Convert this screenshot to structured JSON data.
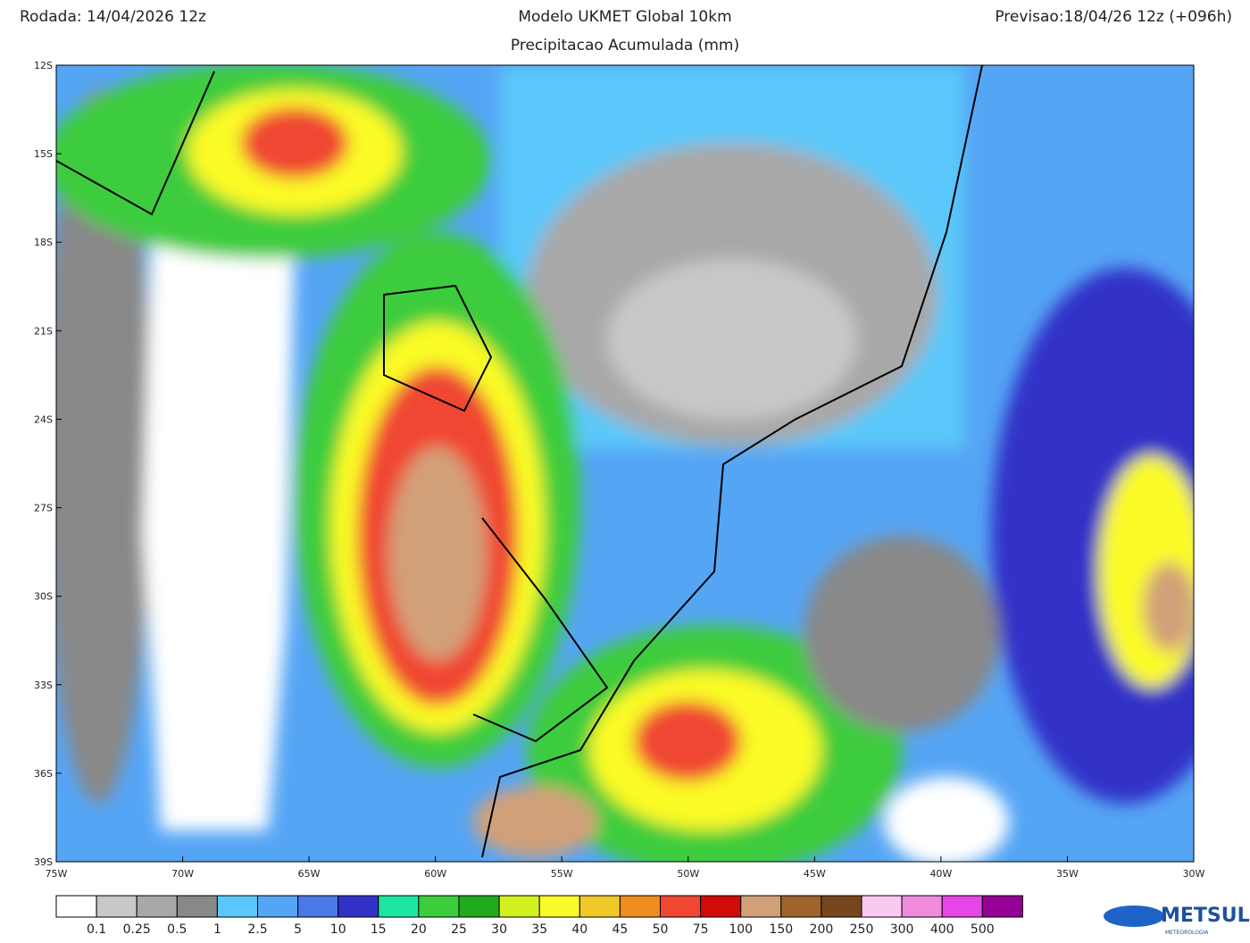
{
  "header": {
    "run": "Rodada: 14/04/2026 12z",
    "title": "Modelo UKMET Global 10km",
    "subtitle": "Precipitacao Acumulada (mm)",
    "forecast": "Previsao:18/04/26 12z (+096h)"
  },
  "map": {
    "lat_labels": [
      "12S",
      "15S",
      "18S",
      "21S",
      "24S",
      "27S",
      "30S",
      "33S",
      "36S",
      "39S"
    ],
    "lon_labels": [
      "75W",
      "70W",
      "65W",
      "60W",
      "55W",
      "50W",
      "45W",
      "40W",
      "35W",
      "30W"
    ]
  },
  "legend": {
    "labels": [
      "0.1",
      "0.25",
      "0.5",
      "1",
      "2.5",
      "5",
      "10",
      "15",
      "20",
      "25",
      "30",
      "35",
      "40",
      "45",
      "50",
      "75",
      "100",
      "150",
      "200",
      "250",
      "300",
      "400",
      "500"
    ],
    "colors": [
      "#ffffff",
      "#c8c8c8",
      "#a8a8a8",
      "#888888",
      "#5ac8fa",
      "#55a5f5",
      "#4a78e6",
      "#3232c8",
      "#1ee6a0",
      "#3ccc3c",
      "#22aa1e",
      "#d2f01e",
      "#fafa28",
      "#f0c828",
      "#f08c1e",
      "#f04632",
      "#d20a0a",
      "#d2a078",
      "#a0642d",
      "#78461e",
      "#fac8f0",
      "#f08cdc",
      "#e646e6",
      "#960096"
    ]
  },
  "logo": {
    "name": "METSUL",
    "tagline": "METEOROLOGIA"
  }
}
